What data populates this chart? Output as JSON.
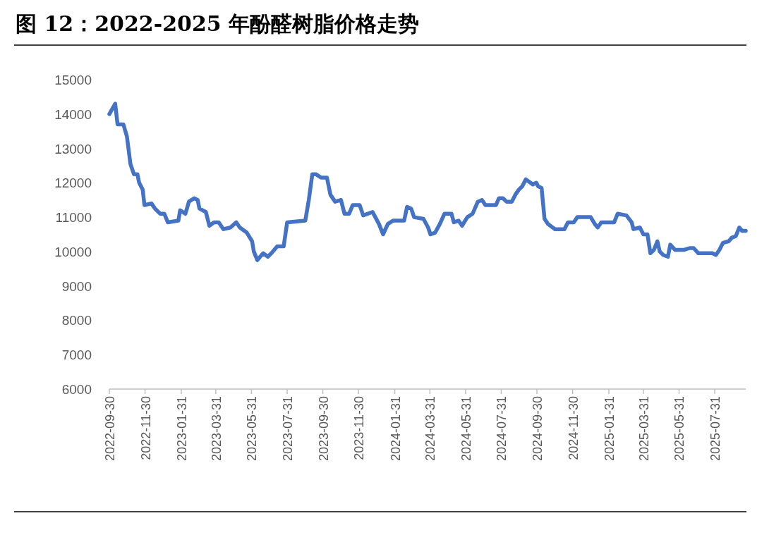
{
  "chart_data": {
    "type": "line",
    "title": "图 12：2022-2025 年酚醛树脂价格走势",
    "x": [
      "2022-09-30",
      "2022-10-10",
      "2022-10-14",
      "2022-10-24",
      "2022-10-30",
      "2022-11-05",
      "2022-11-11",
      "2022-11-17",
      "2022-11-20",
      "2022-11-26",
      "2022-11-29",
      "2022-12-11",
      "2022-12-17",
      "2022-12-26",
      "2023-01-02",
      "2023-01-08",
      "2023-01-26",
      "2023-01-29",
      "2023-02-07",
      "2023-02-13",
      "2023-02-22",
      "2023-02-28",
      "2023-03-03",
      "2023-03-14",
      "2023-03-20",
      "2023-03-28",
      "2023-04-05",
      "2023-04-13",
      "2023-04-25",
      "2023-05-05",
      "2023-05-11",
      "2023-05-23",
      "2023-06-01",
      "2023-06-04",
      "2023-06-10",
      "2023-06-20",
      "2023-06-28",
      "2023-07-04",
      "2023-07-14",
      "2023-07-25",
      "2023-07-31",
      "2023-08-31",
      "2023-09-06",
      "2023-09-12",
      "2023-09-18",
      "2023-09-27",
      "2023-10-07",
      "2023-10-13",
      "2023-10-21",
      "2023-10-31",
      "2023-11-06",
      "2023-11-14",
      "2023-11-20",
      "2023-12-02",
      "2023-12-08",
      "2023-12-24",
      "2024-01-04",
      "2024-01-11",
      "2024-01-19",
      "2024-01-28",
      "2024-02-16",
      "2024-02-21",
      "2024-02-28",
      "2024-03-04",
      "2024-03-20",
      "2024-03-28",
      "2024-04-01",
      "2024-04-09",
      "2024-04-17",
      "2024-04-25",
      "2024-05-07",
      "2024-05-11",
      "2024-05-19",
      "2024-05-25",
      "2024-06-03",
      "2024-06-12",
      "2024-06-21",
      "2024-06-28",
      "2024-07-04",
      "2024-07-22",
      "2024-07-27",
      "2024-08-03",
      "2024-08-09",
      "2024-08-18",
      "2024-08-24",
      "2024-08-30",
      "2024-09-05",
      "2024-09-11",
      "2024-09-19",
      "2024-09-23",
      "2024-09-29",
      "2024-10-02",
      "2024-10-08",
      "2024-10-13",
      "2024-10-19",
      "2024-10-31",
      "2024-11-16",
      "2024-11-22",
      "2024-12-02",
      "2024-12-08",
      "2024-12-31",
      "2025-01-07",
      "2025-01-12",
      "2025-01-18",
      "2025-02-09",
      "2025-02-15",
      "2025-03-02",
      "2025-03-11",
      "2025-03-14",
      "2025-03-25",
      "2025-03-31",
      "2025-04-07",
      "2025-04-12",
      "2025-04-18",
      "2025-04-24",
      "2025-04-28",
      "2025-05-04",
      "2025-05-12",
      "2025-05-16",
      "2025-05-24",
      "2025-06-09",
      "2025-06-18",
      "2025-06-25",
      "2025-07-03",
      "2025-07-27",
      "2025-08-02",
      "2025-08-08",
      "2025-08-14",
      "2025-08-24",
      "2025-08-29",
      "2025-09-05",
      "2025-09-11",
      "2025-09-16",
      "2025-09-22"
    ],
    "series": [
      {
        "color": "#4472c4",
        "values": [
          14000,
          14300,
          13700,
          13700,
          13350,
          12550,
          12250,
          12250,
          12000,
          11800,
          11350,
          11400,
          11250,
          11100,
          11100,
          10850,
          10900,
          11200,
          11100,
          11450,
          11550,
          11500,
          11250,
          11150,
          10750,
          10850,
          10850,
          10650,
          10700,
          10850,
          10700,
          10550,
          10300,
          10000,
          9750,
          9950,
          9850,
          9950,
          10150,
          10150,
          10850,
          10900,
          11500,
          12250,
          12250,
          12150,
          12150,
          11650,
          11450,
          11500,
          11100,
          11100,
          11350,
          11350,
          11050,
          11150,
          10800,
          10500,
          10800,
          10900,
          10900,
          11300,
          11250,
          11000,
          10950,
          10700,
          10500,
          10550,
          10800,
          11100,
          11100,
          10850,
          10900,
          10750,
          11000,
          11100,
          11450,
          11500,
          11350,
          11350,
          11550,
          11550,
          11450,
          11450,
          11650,
          11800,
          11900,
          12100,
          12000,
          11950,
          12000,
          11900,
          11850,
          10950,
          10800,
          10650,
          10650,
          10850,
          10850,
          11000,
          11000,
          10800,
          10700,
          10850,
          10850,
          11100,
          11050,
          10850,
          10650,
          10700,
          10500,
          10500,
          9950,
          10050,
          10300,
          10000,
          9900,
          9850,
          10200,
          10050,
          10050,
          10100,
          10100,
          9950,
          9950,
          9900,
          10050,
          10250,
          10300,
          10400,
          10450,
          10700,
          10600,
          10600
        ]
      }
    ],
    "xlim": [
      "2022-09-30",
      "2025-09-22"
    ],
    "xticks": [
      "2022-09-30",
      "2022-11-30",
      "2023-01-31",
      "2023-03-31",
      "2023-05-31",
      "2023-07-31",
      "2023-09-30",
      "2023-11-30",
      "2024-01-31",
      "2024-03-31",
      "2024-05-31",
      "2024-07-31",
      "2024-09-30",
      "2024-11-30",
      "2025-01-31",
      "2025-03-31",
      "2025-05-31",
      "2025-07-31"
    ],
    "ylim": [
      6000,
      15000
    ],
    "yticks": [
      6000,
      7000,
      8000,
      9000,
      10000,
      11000,
      12000,
      13000,
      14000,
      15000
    ],
    "line_style": "solid"
  }
}
